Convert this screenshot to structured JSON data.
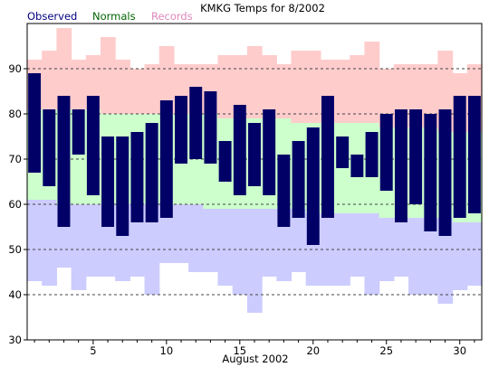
{
  "chart_data": {
    "type": "bar",
    "title": "KMKG Temps for 8/2002",
    "xlabel": "August 2002",
    "ylabel": "",
    "ylim": [
      30,
      100
    ],
    "yticks": [
      30,
      40,
      50,
      60,
      70,
      80,
      90
    ],
    "xticks": [
      5,
      10,
      15,
      20,
      25,
      30
    ],
    "grid": "dashed-horizontal",
    "legend": [
      {
        "name": "Observed",
        "color": "#000080"
      },
      {
        "name": "Normals",
        "color": "#006400"
      },
      {
        "name": "Records",
        "color": "#dd88bb"
      }
    ],
    "colors": {
      "record_band": "#ffcccc",
      "normal_band": "#ccffcc",
      "record_low_band": "#ccccff",
      "observed": "#000066",
      "grid": "#444444"
    },
    "days": [
      1,
      2,
      3,
      4,
      5,
      6,
      7,
      8,
      9,
      10,
      11,
      12,
      13,
      14,
      15,
      16,
      17,
      18,
      19,
      20,
      21,
      22,
      23,
      24,
      25,
      26,
      27,
      28,
      29,
      30,
      31
    ],
    "series": [
      {
        "name": "Observed",
        "key": "obs_high",
        "values": [
          89,
          81,
          84,
          81,
          84,
          75,
          75,
          76,
          78,
          83,
          84,
          86,
          85,
          74,
          82,
          78,
          81,
          71,
          74,
          77,
          84,
          75,
          71,
          76,
          80,
          81,
          81,
          80,
          81,
          84,
          84
        ]
      },
      {
        "name": "Observed",
        "key": "obs_low",
        "values": [
          67,
          64,
          55,
          71,
          62,
          55,
          53,
          56,
          56,
          57,
          69,
          70,
          69,
          65,
          62,
          64,
          62,
          55,
          57,
          51,
          57,
          68,
          66,
          66,
          63,
          56,
          60,
          54,
          53,
          57,
          58
        ]
      },
      {
        "name": "Normals",
        "key": "normal_high",
        "values": [
          81,
          81,
          81,
          81,
          81,
          80,
          80,
          80,
          80,
          80,
          80,
          80,
          80,
          79,
          79,
          79,
          79,
          79,
          78,
          78,
          78,
          78,
          78,
          78,
          77,
          77,
          77,
          77,
          76,
          76,
          76
        ]
      },
      {
        "name": "Normals",
        "key": "normal_low",
        "values": [
          61,
          61,
          60,
          60,
          60,
          60,
          60,
          60,
          60,
          60,
          60,
          60,
          59,
          59,
          59,
          59,
          59,
          59,
          59,
          58,
          58,
          58,
          58,
          58,
          57,
          57,
          57,
          57,
          57,
          56,
          56
        ]
      },
      {
        "name": "Records",
        "key": "record_high",
        "values": [
          92,
          94,
          99,
          92,
          93,
          97,
          92,
          90,
          91,
          95,
          91,
          91,
          91,
          93,
          93,
          95,
          93,
          91,
          94,
          94,
          92,
          92,
          93,
          96,
          90,
          91,
          91,
          91,
          94,
          89,
          91
        ]
      },
      {
        "name": "Records",
        "key": "record_low",
        "values": [
          43,
          42,
          46,
          41,
          44,
          44,
          43,
          44,
          40,
          47,
          47,
          45,
          45,
          42,
          40,
          36,
          44,
          43,
          45,
          42,
          42,
          42,
          44,
          40,
          43,
          44,
          40,
          40,
          38,
          41,
          42
        ]
      }
    ]
  }
}
